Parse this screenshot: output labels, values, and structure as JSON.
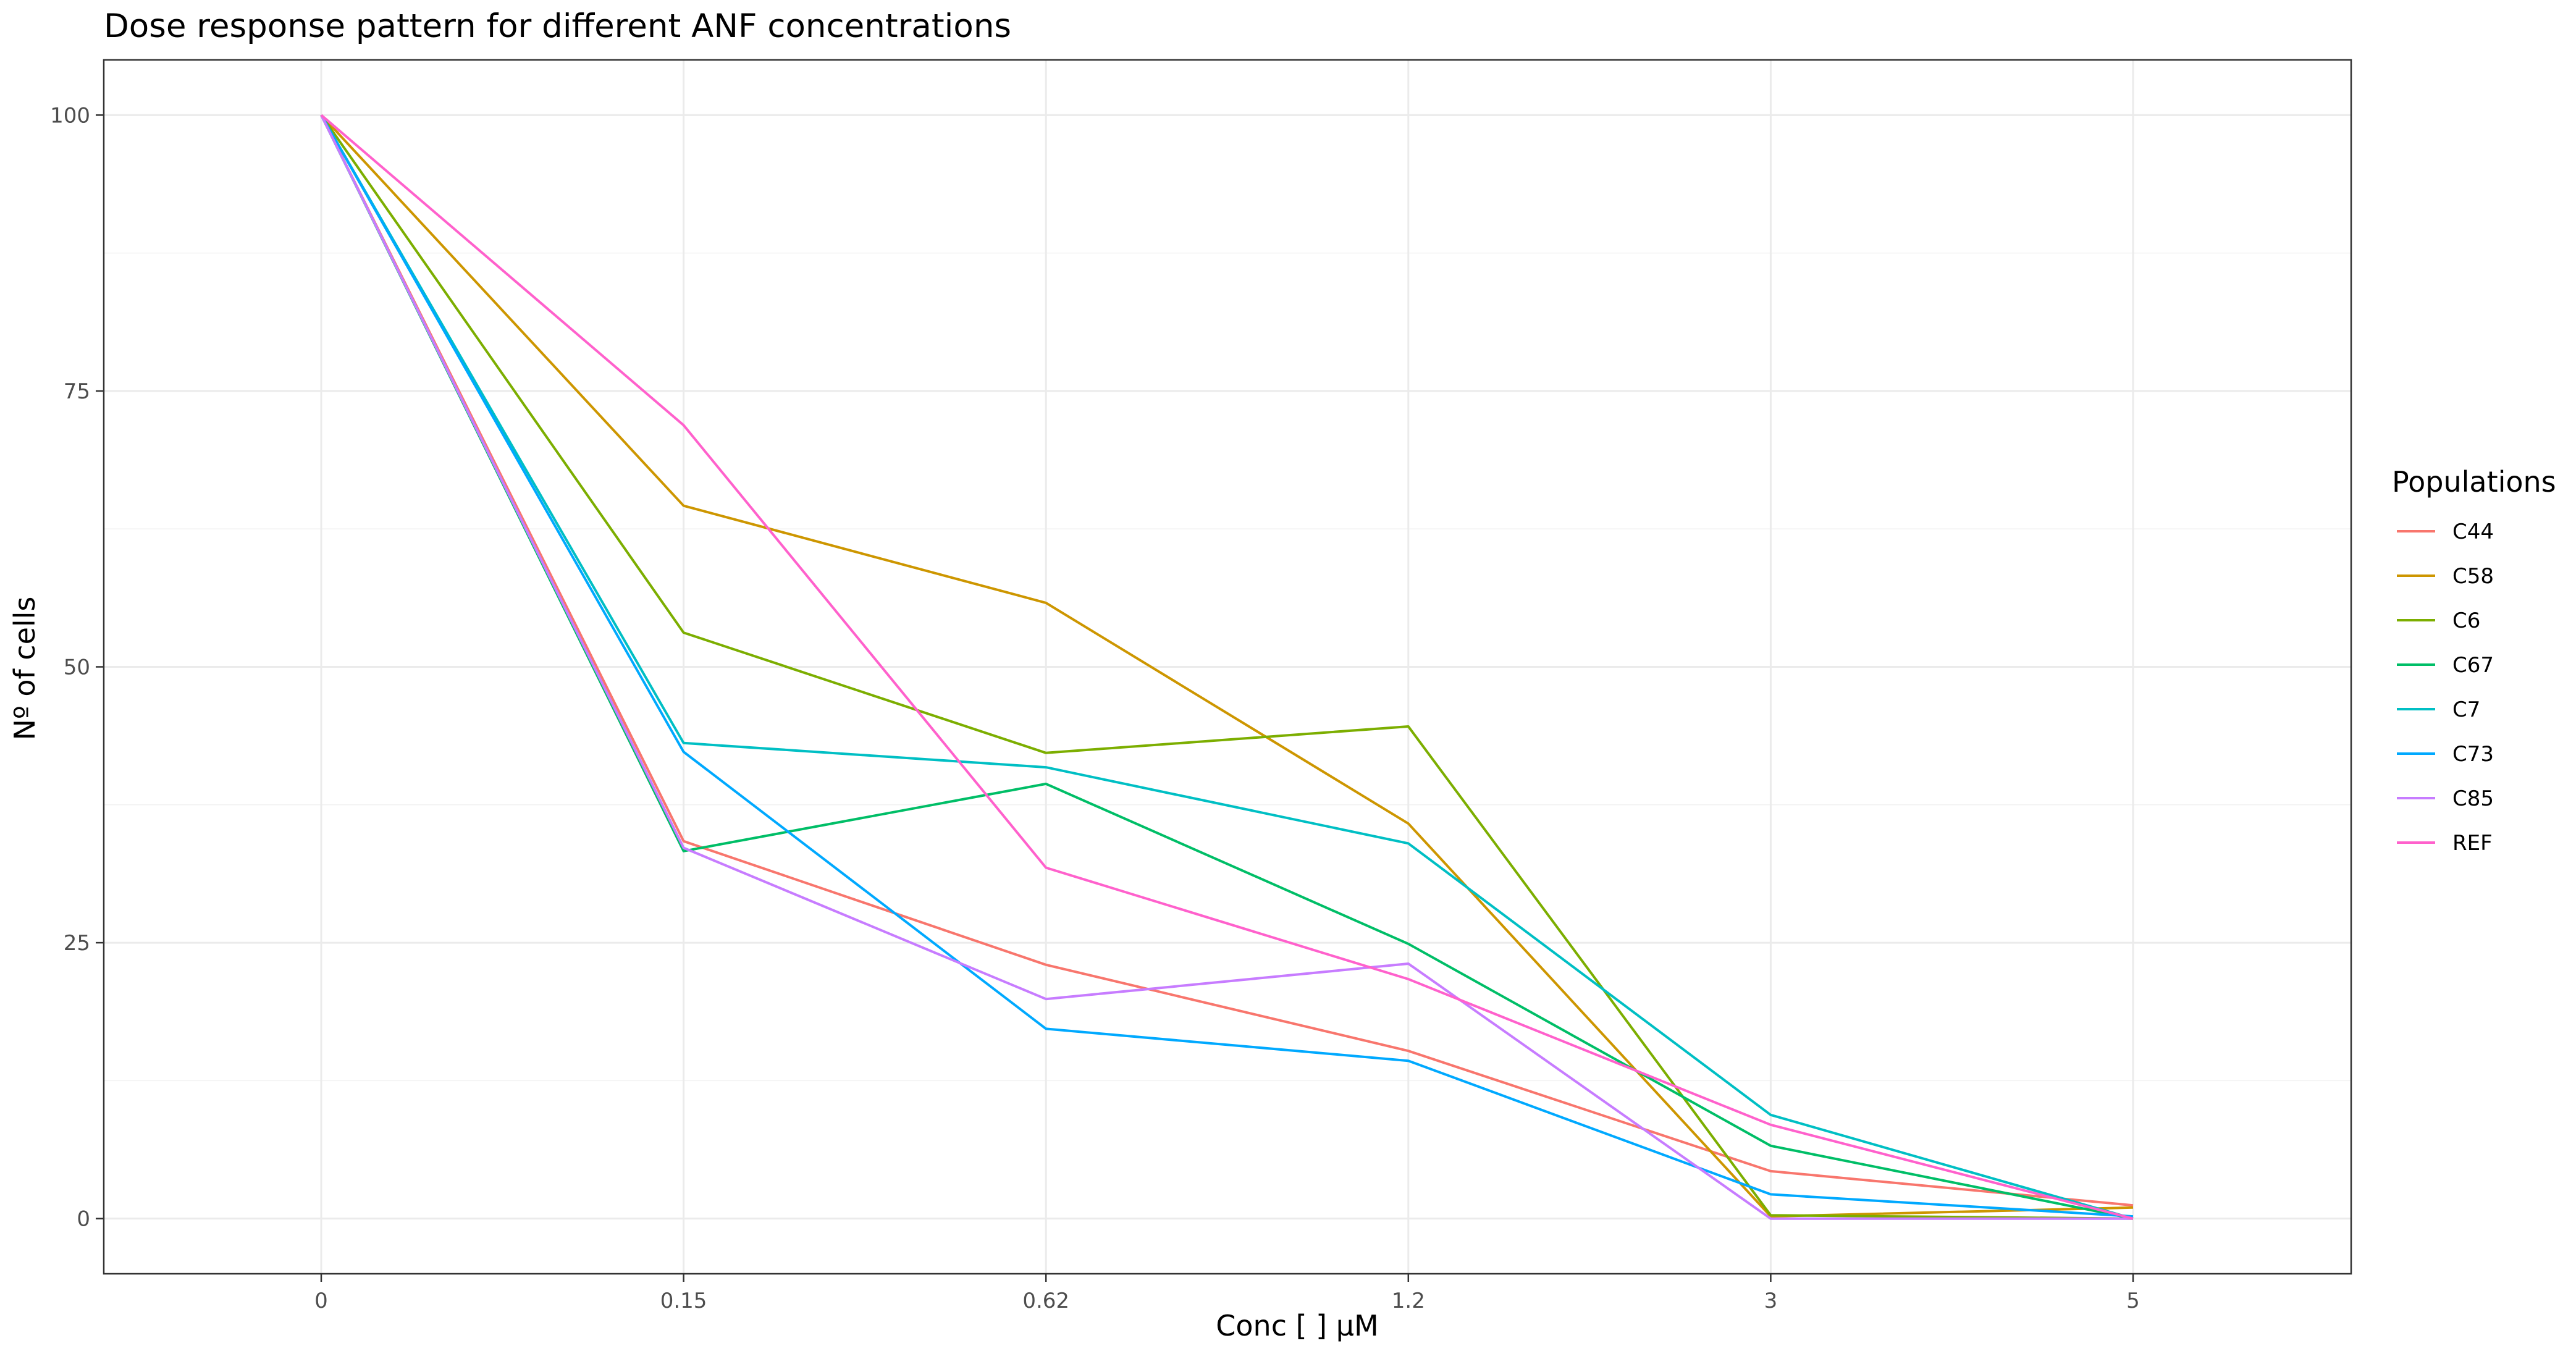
{
  "chart_data": {
    "type": "line",
    "title": "Dose response pattern for different ANF concentrations",
    "xlabel": "Conc [   ] μM",
    "ylabel": "Nº of cells",
    "categories": [
      "0",
      "0.15",
      "0.62",
      "1.2",
      "3",
      "5"
    ],
    "ylim": [
      -5,
      105
    ],
    "yticks": [
      0,
      25,
      50,
      75,
      100
    ],
    "grid": true,
    "legend": {
      "title": "Populations",
      "position": "right"
    },
    "series": [
      {
        "name": "C44",
        "color": "#F8766D",
        "values": [
          100,
          34.2,
          23.0,
          15.2,
          4.3,
          1.2
        ]
      },
      {
        "name": "C58",
        "color": "#CD9600",
        "values": [
          100,
          64.6,
          55.8,
          35.8,
          0.2,
          1.0
        ]
      },
      {
        "name": "C6",
        "color": "#7CAE00",
        "values": [
          100,
          53.1,
          42.2,
          44.6,
          0.3,
          0.0
        ]
      },
      {
        "name": "C67",
        "color": "#00BE67",
        "values": [
          100,
          33.3,
          39.4,
          24.9,
          6.6,
          0.0
        ]
      },
      {
        "name": "C7",
        "color": "#00BFC4",
        "values": [
          100,
          43.1,
          40.9,
          34.0,
          9.4,
          0.0
        ]
      },
      {
        "name": "C73",
        "color": "#00A9FF",
        "values": [
          100,
          42.3,
          17.2,
          14.3,
          2.2,
          0.2
        ]
      },
      {
        "name": "C85",
        "color": "#C77CFF",
        "values": [
          100,
          33.6,
          19.9,
          23.1,
          0.0,
          0.0
        ]
      },
      {
        "name": "REF",
        "color": "#FF61CC",
        "values": [
          100,
          71.9,
          31.8,
          21.7,
          8.5,
          0.0
        ]
      }
    ]
  }
}
